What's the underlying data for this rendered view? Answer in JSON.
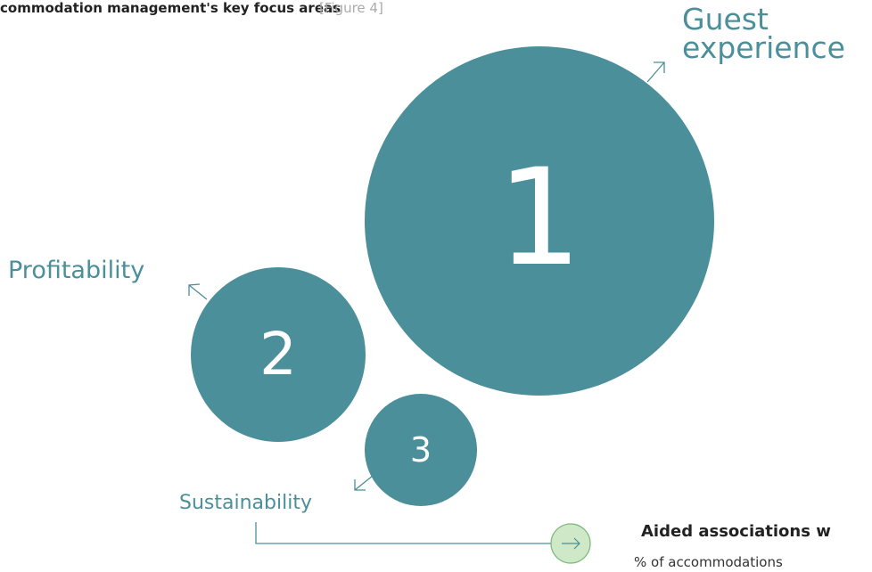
{
  "header": {
    "title": "commodation management's key focus areas",
    "figure_ref": "[Figure 4]"
  },
  "focus_areas": [
    {
      "rank": "1",
      "label": "Guest experience"
    },
    {
      "rank": "2",
      "label": "Profitability"
    },
    {
      "rank": "3",
      "label": "Sustainability"
    }
  ],
  "next_section": {
    "title": "Aided associations w",
    "subtitle": "% of accommodations"
  }
}
